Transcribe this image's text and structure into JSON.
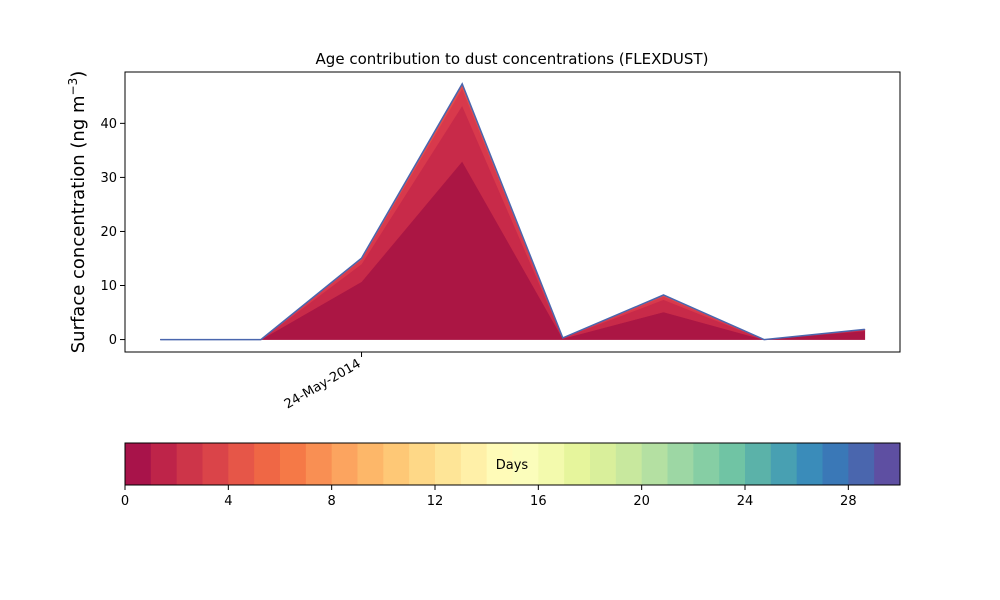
{
  "chart_data": [
    {
      "type": "area",
      "stacked": true,
      "title": "Age contribution to dust concentrations (FLEXDUST)",
      "ylabel_main": "Surface concentration (ng m",
      "ylabel_sup": "−3",
      "ylabel_close": ")",
      "xlabel": "",
      "ylim": [
        -2.3,
        49.5
      ],
      "xlim": [
        -0.35,
        7.35
      ],
      "yticks": [
        0,
        10,
        20,
        30,
        40
      ],
      "xticks": [
        {
          "x": 2,
          "label": "24-May-2014"
        }
      ],
      "x": [
        0,
        1,
        2,
        3,
        4,
        5,
        6,
        7
      ],
      "series": [
        {
          "color": "#ab1644",
          "values": [
            0,
            0,
            10.7,
            33,
            0.2,
            5.1,
            0,
            1.6
          ]
        },
        {
          "color": "#c82a49",
          "values": [
            0,
            0,
            3.3,
            10.3,
            0.1,
            2.3,
            0,
            0.2
          ]
        },
        {
          "color": "#d8394c",
          "values": [
            0,
            0,
            0.8,
            3.2,
            0,
            0.6,
            0,
            0.05
          ]
        },
        {
          "color": "#e34c4a",
          "values": [
            0,
            0,
            0.2,
            0.7,
            0,
            0.2,
            0,
            0.02
          ]
        },
        {
          "color": "#3f6fb2",
          "values": [
            0,
            0,
            0.05,
            0.1,
            0,
            0.05,
            0,
            0.01
          ]
        }
      ],
      "grid": false
    },
    {
      "type": "colorbar",
      "label": "Days",
      "range": [
        0,
        30
      ],
      "ticks": [
        "0",
        "4",
        "8",
        "12",
        "16",
        "20",
        "24",
        "28"
      ],
      "tick_values": [
        0,
        4,
        8,
        12,
        16,
        20,
        24,
        28
      ],
      "colors": [
        "#a8134a",
        "#be2449",
        "#cd3549",
        "#da4449",
        "#e65648",
        "#ef6745",
        "#f57947",
        "#f98f53",
        "#fca45f",
        "#fdb769",
        "#fec876",
        "#fed887",
        "#fee597",
        "#fff0a8",
        "#fffbb8",
        "#fbfdbb",
        "#f3faad",
        "#e6f59c",
        "#d9ef9b",
        "#c8e89e",
        "#b4e0a2",
        "#9dd7a4",
        "#86cea4",
        "#70c4a4",
        "#5bb2a9",
        "#48a0b2",
        "#3a8cba",
        "#3a78b7",
        "#4a66ae",
        "#5e4fa2"
      ]
    }
  ]
}
